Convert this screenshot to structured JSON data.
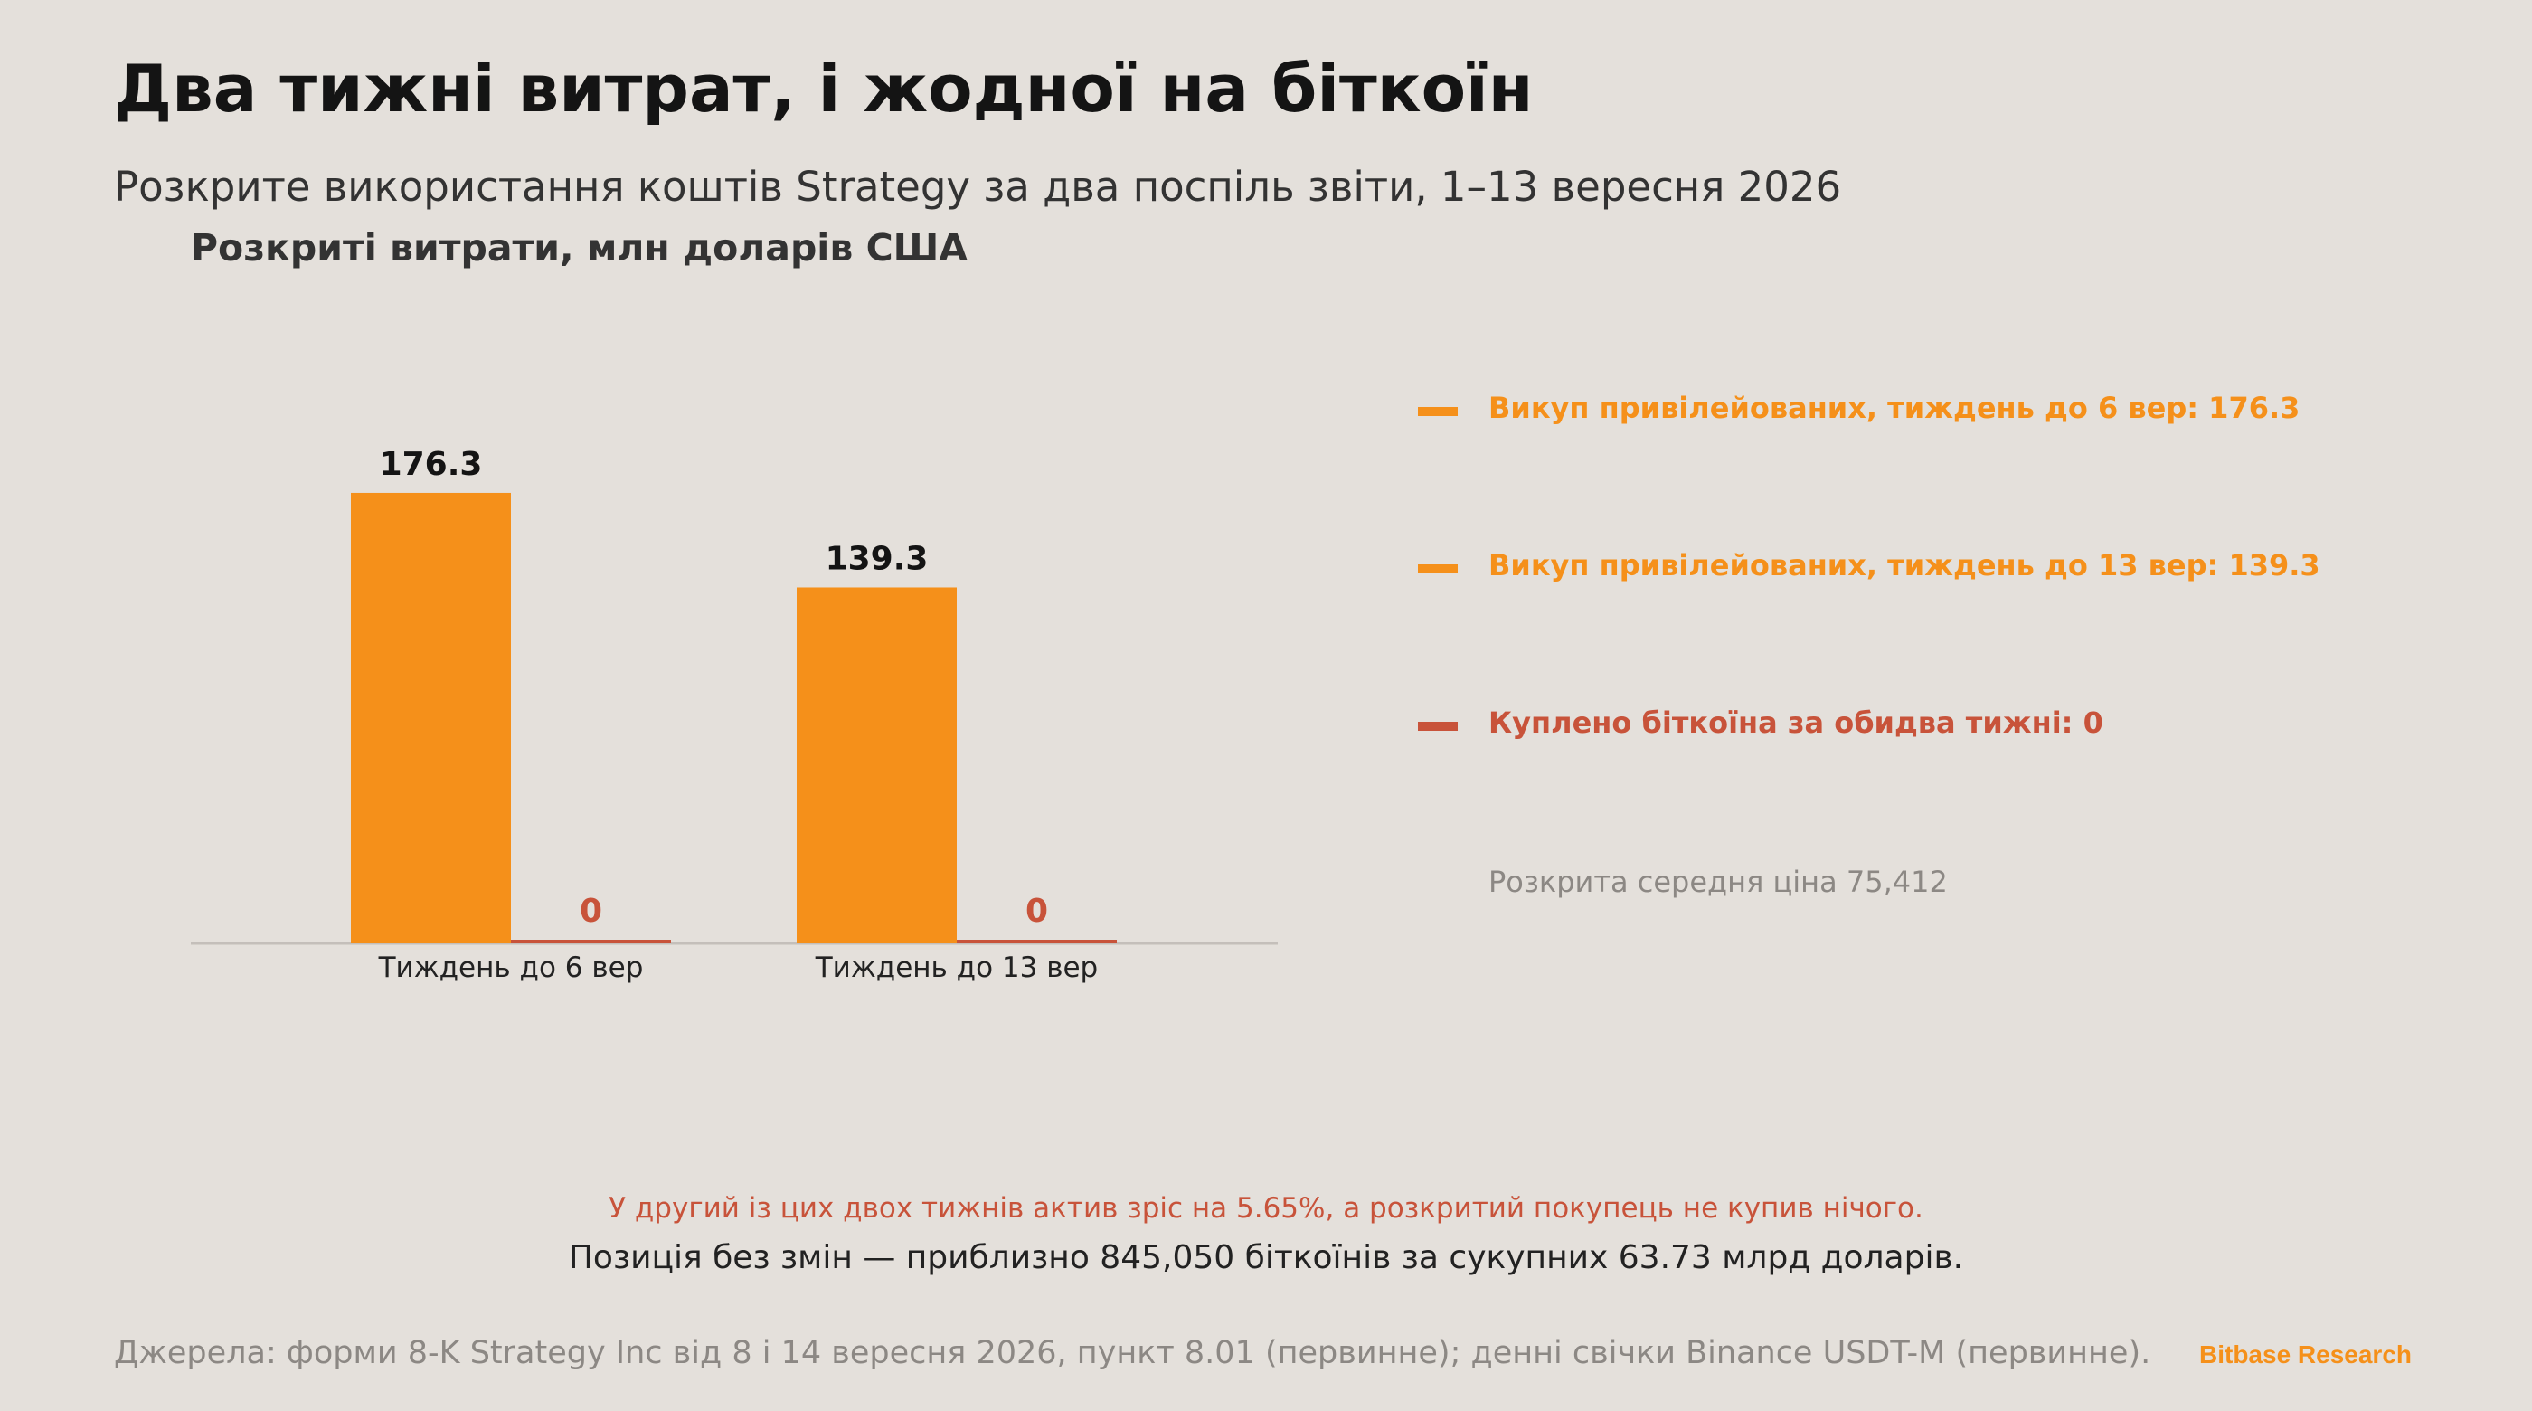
{
  "header": {
    "title": "Два тижні витрат, і жодної на біткоїн",
    "subtitle": "Розкрите використання коштів Strategy за два поспіль звіти, 1–13 вересня 2026"
  },
  "chart_data": {
    "type": "bar",
    "title": "Розкриті витрати, млн доларів США",
    "categories": [
      "Тиждень до 6 вер",
      "Тиждень до 13 вер"
    ],
    "series": [
      {
        "color": "#f5901a",
        "values": [
          176.3,
          139.3
        ],
        "labels": [
          "176.3",
          "139.3"
        ]
      },
      {
        "color": "#c8533a",
        "values": [
          0,
          0
        ],
        "labels": [
          "0",
          "0"
        ]
      }
    ],
    "ylim": [
      0,
      200
    ],
    "grid": false,
    "legend": "right"
  },
  "legend": {
    "items": [
      {
        "label": "Викуп привілейованих, тиждень до 6 вер: 176.3",
        "color": "#f5901a"
      },
      {
        "label": "Викуп привілейованих, тиждень до 13 вер: 139.3",
        "color": "#f5901a"
      },
      {
        "label": "Куплено біткоїна за обидва тижні: 0",
        "color": "#c8533a"
      }
    ],
    "note": "Розкрита середня ціна 75,412"
  },
  "insight": {
    "line1": "У другий із цих двох тижнів актив зріс на 5.65%, а розкритий покупець не купив нічого.",
    "line2": "Позиція без змін — приблизно 845,050 біткоїнів за сукупних 63.73 млрд доларів."
  },
  "footer": {
    "source": "Джерела: форми 8-K Strategy Inc від 8 і 14 вересня 2026, пункт 8.01 (первинне); денні свічки Binance USDT-M (первинне).",
    "brand": "Bitbase Research"
  },
  "colors": {
    "orange": "#f5901a",
    "red": "#c8533a",
    "background": "#e4e0db"
  }
}
